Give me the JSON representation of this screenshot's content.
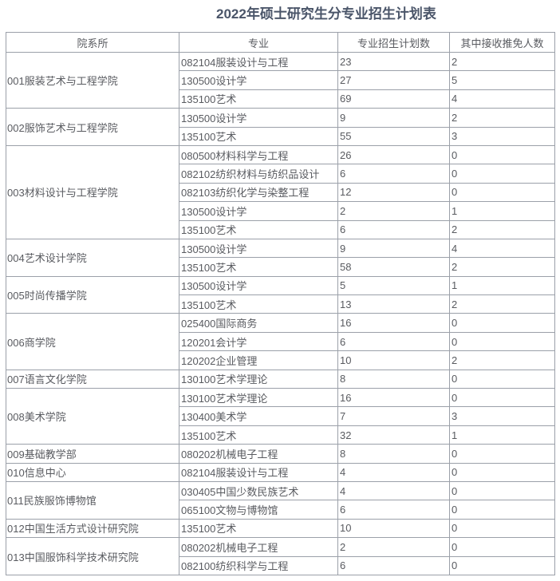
{
  "title": "2022年硕士研究生分专业招生计划表",
  "colors": {
    "title_text": "#4a5569",
    "body_text": "#595b60",
    "border": "#9ba0a9",
    "background": "#ffffff"
  },
  "table": {
    "headers": [
      "院系所",
      "专业",
      "专业招生计划数",
      "其中接收推免人数"
    ],
    "sections": [
      {
        "department": "001服装艺术与工程学院",
        "rows": [
          [
            "082104服装设计与工程",
            "23",
            "2"
          ],
          [
            "130500设计学",
            "27",
            "5"
          ],
          [
            "135100艺术",
            "69",
            "4"
          ]
        ]
      },
      {
        "department": "002服饰艺术与工程学院",
        "rows": [
          [
            "130500设计学",
            "9",
            "2"
          ],
          [
            "135100艺术",
            "55",
            "3"
          ]
        ]
      },
      {
        "department": "003材料设计与工程学院",
        "rows": [
          [
            "080500材料科学与工程",
            "26",
            "0"
          ],
          [
            "082102纺织材料与纺织品设计",
            "6",
            "0"
          ],
          [
            "082103纺织化学与染整工程",
            "12",
            "0"
          ],
          [
            "130500设计学",
            "2",
            "1"
          ],
          [
            "135100艺术",
            "6",
            "2"
          ]
        ]
      },
      {
        "department": "004艺术设计学院",
        "rows": [
          [
            "130500设计学",
            "9",
            "4"
          ],
          [
            "135100艺术",
            "58",
            "2"
          ]
        ]
      },
      {
        "department": "005时尚传播学院",
        "rows": [
          [
            "130500设计学",
            "5",
            "1"
          ],
          [
            "135100艺术",
            "13",
            "2"
          ]
        ]
      },
      {
        "department": "006商学院",
        "rows": [
          [
            "025400国际商务",
            "16",
            "0"
          ],
          [
            "120201会计学",
            "6",
            "0"
          ],
          [
            "120202企业管理",
            "10",
            "2"
          ]
        ]
      },
      {
        "department": "007语言文化学院",
        "rows": [
          [
            "130100艺术学理论",
            "8",
            "0"
          ]
        ]
      },
      {
        "department": "008美术学院",
        "rows": [
          [
            "130100艺术学理论",
            "16",
            "0"
          ],
          [
            "130400美术学",
            "7",
            "3"
          ],
          [
            "135100艺术",
            "32",
            "1"
          ]
        ]
      },
      {
        "department": "009基础教学部",
        "rows": [
          [
            "080202机械电子工程",
            "8",
            "0"
          ]
        ]
      },
      {
        "department": "010信息中心",
        "rows": [
          [
            "082104服装设计与工程",
            "4",
            "0"
          ]
        ]
      },
      {
        "department": "011民族服饰博物馆",
        "rows": [
          [
            "030405中国少数民族艺术",
            "4",
            "0"
          ],
          [
            "065100文物与博物馆",
            "6",
            "0"
          ]
        ]
      },
      {
        "department": "012中国生活方式设计研究院",
        "rows": [
          [
            "135100艺术",
            "10",
            "0"
          ]
        ]
      },
      {
        "department": "013中国服饰科学技术研究院",
        "rows": [
          [
            "080202机械电子工程",
            "2",
            "0"
          ],
          [
            "082100纺织科学与工程",
            "6",
            "0"
          ]
        ]
      }
    ]
  }
}
